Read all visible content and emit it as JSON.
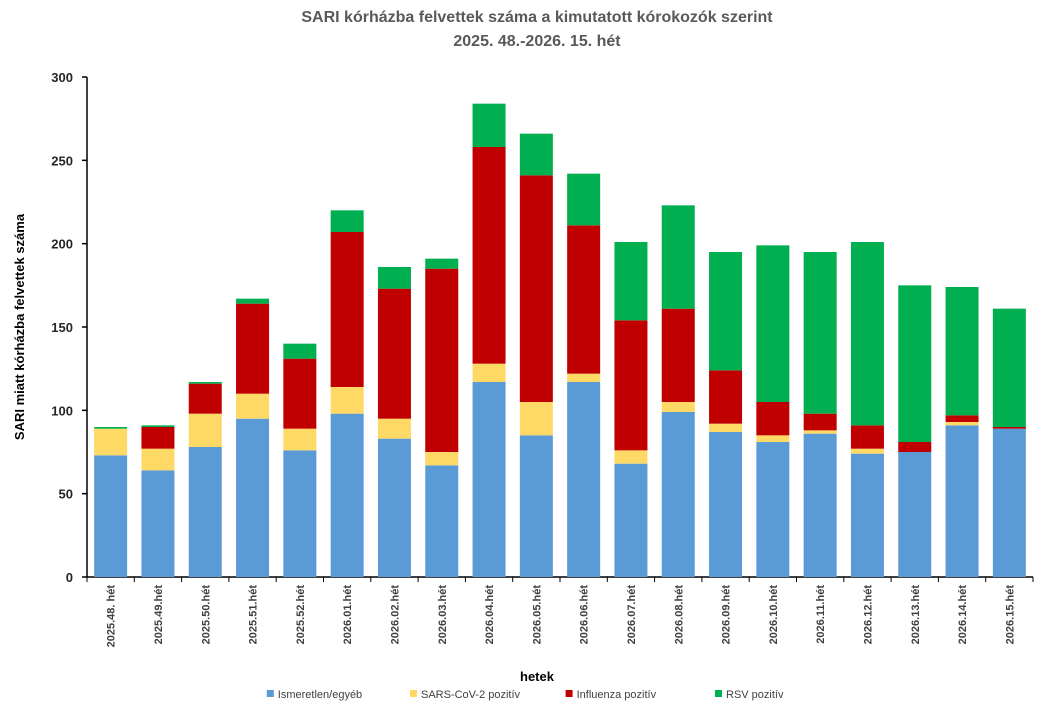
{
  "chart_data": {
    "type": "stacked_bar",
    "title": "SARI kórházba felvettek száma a kimutatott kórokozók szerint",
    "subtitle": "2025. 48.-2026. 15. hét",
    "x_label": "hetek",
    "y_label": "SARI miatt kórházba felvettek száma",
    "categories": [
      "2025.48. hét",
      "2025.49.hét",
      "2025.50.hét",
      "2025.51.hét",
      "2025.52.hét",
      "2026.01.hét",
      "2026.02.hét",
      "2026.03.hét",
      "2026.04.hét",
      "2026.05.hét",
      "2026.06.hét",
      "2026.07.hét",
      "2026.08.hét",
      "2026.09.hét",
      "2026.10.hét",
      "2026.11.hét",
      "2026.12.hét",
      "2026.13.hét",
      "2026.14.hét",
      "2026.15.hét"
    ],
    "series": [
      {
        "name": "Ismeretlen/egyéb",
        "color": "#5b9bd5",
        "values": [
          73,
          64,
          78,
          95,
          76,
          98,
          83,
          67,
          117,
          85,
          117,
          68,
          99,
          87,
          81,
          86,
          74,
          75,
          91,
          89
        ]
      },
      {
        "name": "SARS-CoV-2 pozitív",
        "color": "#ffd966",
        "values": [
          16,
          13,
          20,
          15,
          13,
          16,
          12,
          8,
          11,
          20,
          5,
          8,
          6,
          5,
          4,
          2,
          3,
          0,
          2,
          0
        ]
      },
      {
        "name": "Influenza pozitív",
        "color": "#c00000",
        "values": [
          0,
          13,
          18,
          54,
          42,
          93,
          78,
          110,
          130,
          136,
          89,
          78,
          56,
          32,
          20,
          10,
          14,
          6,
          4,
          1
        ]
      },
      {
        "name": "RSV pozitív",
        "color": "#00b050",
        "values": [
          1,
          1,
          1,
          3,
          9,
          13,
          13,
          6,
          26,
          25,
          31,
          47,
          62,
          71,
          94,
          97,
          110,
          94,
          77,
          71
        ]
      }
    ],
    "ylim": [
      0,
      300
    ],
    "yticks": [
      0,
      50,
      100,
      150,
      200,
      250,
      300
    ],
    "legend": "bottom"
  }
}
